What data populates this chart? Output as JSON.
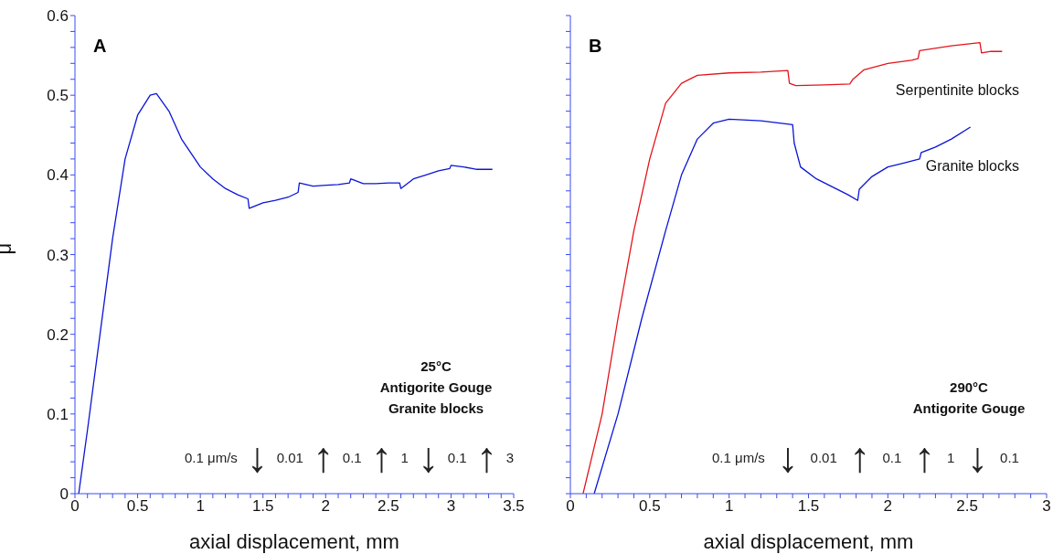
{
  "chart_data": [
    {
      "type": "line",
      "title": "A",
      "xlabel": "axial displacement, mm",
      "ylabel": "μ",
      "xlim": [
        0,
        3.5
      ],
      "ylim": [
        0,
        0.6
      ],
      "xticks": [
        0,
        {
          "value": 0.1,
          "label": null
        },
        {
          "value": 0.2,
          "label": null
        },
        {
          "value": 0.3,
          "label": null
        },
        {
          "value": 0.4,
          "label": null
        },
        0.5,
        {
          "value": 0.6,
          "label": null
        },
        {
          "value": 0.7,
          "label": null
        },
        {
          "value": 0.8,
          "label": null
        },
        {
          "value": 0.9,
          "label": null
        },
        1,
        {
          "value": 1.1,
          "label": null
        },
        {
          "value": 1.2,
          "label": null
        },
        {
          "value": 1.3,
          "label": null
        },
        {
          "value": 1.4,
          "label": null
        },
        1.5,
        {
          "value": 1.6,
          "label": null
        },
        {
          "value": 1.7,
          "label": null
        },
        {
          "value": 1.8,
          "label": null
        },
        {
          "value": 1.9,
          "label": null
        },
        2,
        {
          "value": 2.1,
          "label": null
        },
        {
          "value": 2.2,
          "label": null
        },
        {
          "value": 2.3,
          "label": null
        },
        {
          "value": 2.4,
          "label": null
        },
        2.5,
        {
          "value": 2.6,
          "label": null
        },
        {
          "value": 2.7,
          "label": null
        },
        {
          "value": 2.8,
          "label": null
        },
        {
          "value": 2.9,
          "label": null
        },
        3,
        {
          "value": 3.1,
          "label": null
        },
        {
          "value": 3.2,
          "label": null
        },
        {
          "value": 3.3,
          "label": null
        },
        {
          "value": 3.4,
          "label": null
        },
        3.5
      ],
      "yticks": [
        0,
        {
          "value": 0.02,
          "label": null
        },
        {
          "value": 0.04,
          "label": null
        },
        {
          "value": 0.06,
          "label": null
        },
        {
          "value": 0.08,
          "label": null
        },
        0.1,
        {
          "value": 0.12,
          "label": null
        },
        {
          "value": 0.14,
          "label": null
        },
        {
          "value": 0.16,
          "label": null
        },
        {
          "value": 0.18,
          "label": null
        },
        0.2,
        {
          "value": 0.22,
          "label": null
        },
        {
          "value": 0.24,
          "label": null
        },
        {
          "value": 0.26,
          "label": null
        },
        {
          "value": 0.28,
          "label": null
        },
        0.3,
        {
          "value": 0.32,
          "label": null
        },
        {
          "value": 0.34,
          "label": null
        },
        {
          "value": 0.36,
          "label": null
        },
        {
          "value": 0.38,
          "label": null
        },
        0.4,
        {
          "value": 0.42,
          "label": null
        },
        {
          "value": 0.44,
          "label": null
        },
        {
          "value": 0.46,
          "label": null
        },
        {
          "value": 0.48,
          "label": null
        },
        0.5,
        {
          "value": 0.52,
          "label": null
        },
        {
          "value": 0.54,
          "label": null
        },
        {
          "value": 0.56,
          "label": null
        },
        {
          "value": 0.58,
          "label": null
        },
        0.6
      ],
      "series": [
        {
          "color": "#0a14d8",
          "x": [
            0.03,
            0.1,
            0.2,
            0.3,
            0.4,
            0.5,
            0.6,
            0.65,
            0.75,
            0.85,
            1.0,
            1.1,
            1.2,
            1.3,
            1.38,
            1.39,
            1.5,
            1.6,
            1.7,
            1.78,
            1.79,
            1.9,
            2.0,
            2.1,
            2.19,
            2.2,
            2.3,
            2.4,
            2.5,
            2.59,
            2.6,
            2.7,
            2.8,
            2.9,
            2.99,
            3.0,
            3.1,
            3.2,
            3.33
          ],
          "values": [
            0,
            0.08,
            0.2,
            0.32,
            0.42,
            0.475,
            0.5,
            0.502,
            0.48,
            0.445,
            0.41,
            0.395,
            0.383,
            0.375,
            0.37,
            0.358,
            0.365,
            0.368,
            0.372,
            0.378,
            0.39,
            0.386,
            0.387,
            0.388,
            0.39,
            0.395,
            0.389,
            0.389,
            0.39,
            0.39,
            0.383,
            0.395,
            0.4,
            0.405,
            0.408,
            0.412,
            0.41,
            0.407,
            0.407
          ]
        }
      ],
      "annotations": [
        "25°C",
        "Antigorite Gouge",
        "Granite blocks",
        "0.1 μm/s ↓ 0.01 ↑ 0.1 ↑ 1 ↓ 0.1 ↑ 3"
      ]
    },
    {
      "type": "line",
      "title": "B",
      "xlabel": "axial displacement, mm",
      "xlim": [
        0,
        3
      ],
      "ylim": [
        0,
        0.6
      ],
      "tick_labels": "x",
      "xticks": [
        0,
        {
          "value": 0.1,
          "label": null
        },
        {
          "value": 0.2,
          "label": null
        },
        {
          "value": 0.3,
          "label": null
        },
        {
          "value": 0.4,
          "label": null
        },
        0.5,
        {
          "value": 0.6,
          "label": null
        },
        {
          "value": 0.7,
          "label": null
        },
        {
          "value": 0.8,
          "label": null
        },
        {
          "value": 0.9,
          "label": null
        },
        1,
        {
          "value": 1.1,
          "label": null
        },
        {
          "value": 1.2,
          "label": null
        },
        {
          "value": 1.3,
          "label": null
        },
        {
          "value": 1.4,
          "label": null
        },
        1.5,
        {
          "value": 1.6,
          "label": null
        },
        {
          "value": 1.7,
          "label": null
        },
        {
          "value": 1.8,
          "label": null
        },
        {
          "value": 1.9,
          "label": null
        },
        2,
        {
          "value": 2.1,
          "label": null
        },
        {
          "value": 2.2,
          "label": null
        },
        {
          "value": 2.3,
          "label": null
        },
        {
          "value": 2.4,
          "label": null
        },
        2.5,
        {
          "value": 2.6,
          "label": null
        },
        {
          "value": 2.7,
          "label": null
        },
        {
          "value": 2.8,
          "label": null
        },
        {
          "value": 2.9,
          "label": null
        },
        3
      ],
      "yticks": [
        0,
        {
          "value": 0.02,
          "label": null
        },
        {
          "value": 0.04,
          "label": null
        },
        {
          "value": 0.06,
          "label": null
        },
        {
          "value": 0.08,
          "label": null
        },
        0.1,
        {
          "value": 0.12,
          "label": null
        },
        {
          "value": 0.14,
          "label": null
        },
        {
          "value": 0.16,
          "label": null
        },
        {
          "value": 0.18,
          "label": null
        },
        0.2,
        {
          "value": 0.22,
          "label": null
        },
        {
          "value": 0.24,
          "label": null
        },
        {
          "value": 0.26,
          "label": null
        },
        {
          "value": 0.28,
          "label": null
        },
        0.3,
        {
          "value": 0.32,
          "label": null
        },
        {
          "value": 0.34,
          "label": null
        },
        {
          "value": 0.36,
          "label": null
        },
        {
          "value": 0.38,
          "label": null
        },
        0.4,
        {
          "value": 0.42,
          "label": null
        },
        {
          "value": 0.44,
          "label": null
        },
        {
          "value": 0.46,
          "label": null
        },
        {
          "value": 0.48,
          "label": null
        },
        0.5,
        {
          "value": 0.52,
          "label": null
        },
        {
          "value": 0.54,
          "label": null
        },
        {
          "value": 0.56,
          "label": null
        },
        {
          "value": 0.58,
          "label": null
        },
        0.6
      ],
      "series": [
        {
          "name": "Serpentinite blocks",
          "color": "#e3141b",
          "x": [
            0.08,
            0.2,
            0.3,
            0.4,
            0.5,
            0.6,
            0.7,
            0.8,
            1.0,
            1.2,
            1.37,
            1.38,
            1.42,
            1.6,
            1.76,
            1.78,
            1.85,
            2.0,
            2.15,
            2.19,
            2.2,
            2.4,
            2.58,
            2.59,
            2.65,
            2.72
          ],
          "values": [
            0,
            0.1,
            0.22,
            0.33,
            0.42,
            0.49,
            0.515,
            0.525,
            0.528,
            0.529,
            0.531,
            0.515,
            0.512,
            0.513,
            0.514,
            0.52,
            0.532,
            0.54,
            0.544,
            0.546,
            0.556,
            0.562,
            0.566,
            0.553,
            0.555,
            0.555
          ]
        },
        {
          "name": "Granite blocks",
          "color": "#0a14d8",
          "x": [
            0.15,
            0.3,
            0.45,
            0.6,
            0.7,
            0.8,
            0.9,
            1.0,
            1.2,
            1.4,
            1.41,
            1.45,
            1.55,
            1.65,
            1.75,
            1.81,
            1.82,
            1.9,
            2.0,
            2.1,
            2.2,
            2.21,
            2.3,
            2.4,
            2.52
          ],
          "values": [
            0,
            0.1,
            0.22,
            0.33,
            0.4,
            0.445,
            0.465,
            0.47,
            0.468,
            0.463,
            0.44,
            0.41,
            0.395,
            0.385,
            0.375,
            0.368,
            0.382,
            0.398,
            0.41,
            0.415,
            0.42,
            0.428,
            0.435,
            0.445,
            0.46
          ]
        }
      ],
      "annotations": [
        "290°C",
        "Antigorite Gouge",
        "0.1 μm/s ↓ 0.01 ↑ 0.1 ↑ 1 ↓ 0.1"
      ]
    }
  ]
}
